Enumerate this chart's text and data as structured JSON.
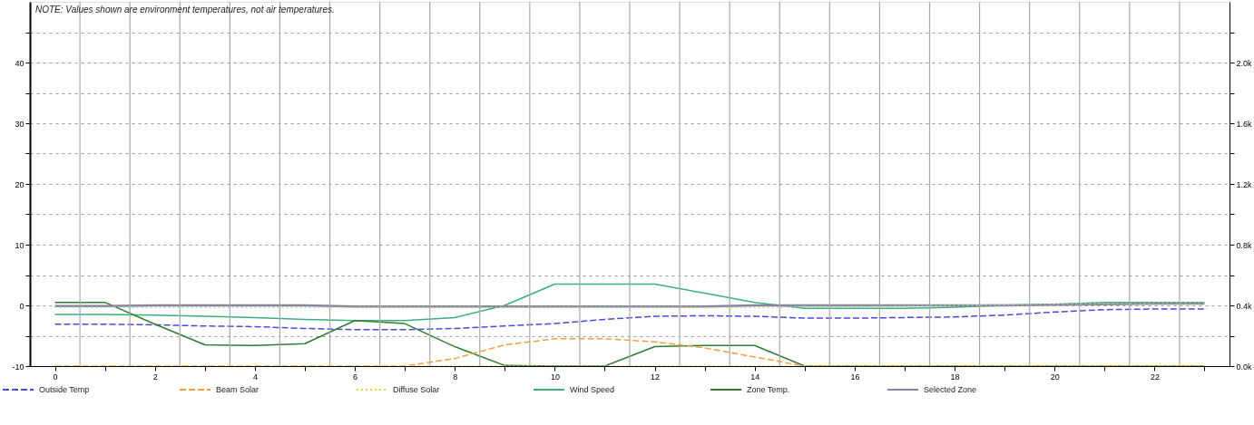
{
  "chart_data": {
    "type": "line",
    "annotations": [
      "NOTE: Values shown are environment temperatures, not air temperatures."
    ],
    "x": [
      0,
      1,
      2,
      3,
      4,
      5,
      6,
      7,
      8,
      9,
      10,
      11,
      12,
      13,
      14,
      15,
      16,
      17,
      18,
      19,
      20,
      21,
      22,
      23
    ],
    "xlim": [
      -0.5,
      23.5
    ],
    "xticks": [
      0,
      {
        "value": 1,
        "label": null
      },
      2,
      {
        "value": 3,
        "label": null
      },
      4,
      {
        "value": 5,
        "label": null
      },
      6,
      {
        "value": 7,
        "label": null
      },
      8,
      {
        "value": 9,
        "label": null
      },
      10,
      {
        "value": 11,
        "label": null
      },
      12,
      {
        "value": 13,
        "label": null
      },
      14,
      {
        "value": 15,
        "label": null
      },
      16,
      {
        "value": 17,
        "label": null
      },
      18,
      {
        "value": 19,
        "label": null
      },
      20,
      {
        "value": 21,
        "label": null
      },
      22,
      {
        "value": 23,
        "label": null
      }
    ],
    "ylim": [
      -10,
      50
    ],
    "yticks": [
      -10,
      {
        "value": -5,
        "label": null
      },
      0,
      {
        "value": 5,
        "label": null
      },
      10,
      {
        "value": 15,
        "label": null
      },
      20,
      {
        "value": 25,
        "label": null
      },
      30,
      {
        "value": 35,
        "label": null
      },
      40,
      {
        "value": 45,
        "label": null
      }
    ],
    "y2lim": [
      0,
      2400
    ],
    "y2ticks": [
      {
        "value": 0,
        "label": "0.0k"
      },
      {
        "value": 200,
        "label": null
      },
      {
        "value": 400,
        "label": "0.4k"
      },
      {
        "value": 600,
        "label": null
      },
      {
        "value": 800,
        "label": "0.8k"
      },
      {
        "value": 1000,
        "label": null
      },
      {
        "value": 1200,
        "label": "1.2k"
      },
      {
        "value": 1400,
        "label": null
      },
      {
        "value": 1600,
        "label": "1.6k"
      },
      {
        "value": 1800,
        "label": null
      },
      {
        "value": 2000,
        "label": "2.0k"
      },
      {
        "value": 2200,
        "label": null
      }
    ],
    "grid": "y",
    "legend": "bottom",
    "ref_lines": [
      {
        "axis": "x",
        "value": 0.5,
        "color": "#a8a8a8"
      },
      {
        "axis": "x",
        "value": 1.5,
        "color": "#a8a8a8"
      },
      {
        "axis": "x",
        "value": 2.5,
        "color": "#a8a8a8"
      },
      {
        "axis": "x",
        "value": 3.5,
        "color": "#a8a8a8"
      },
      {
        "axis": "x",
        "value": 4.5,
        "color": "#a8a8a8"
      },
      {
        "axis": "x",
        "value": 5.5,
        "color": "#a8a8a8"
      },
      {
        "axis": "x",
        "value": 6.5,
        "color": "#a8a8a8"
      },
      {
        "axis": "x",
        "value": 7.5,
        "color": "#a8a8a8"
      },
      {
        "axis": "x",
        "value": 8.5,
        "color": "#a8a8a8"
      },
      {
        "axis": "x",
        "value": 9.5,
        "color": "#a8a8a8"
      },
      {
        "axis": "x",
        "value": 10.5,
        "color": "#a8a8a8"
      },
      {
        "axis": "x",
        "value": 11.5,
        "color": "#a8a8a8"
      },
      {
        "axis": "x",
        "value": 12.5,
        "color": "#a8a8a8"
      },
      {
        "axis": "x",
        "value": 13.5,
        "color": "#a8a8a8"
      },
      {
        "axis": "x",
        "value": 14.5,
        "color": "#a8a8a8"
      },
      {
        "axis": "x",
        "value": 15.5,
        "color": "#a8a8a8"
      },
      {
        "axis": "x",
        "value": 16.5,
        "color": "#a8a8a8"
      },
      {
        "axis": "x",
        "value": 17.5,
        "color": "#a8a8a8"
      },
      {
        "axis": "x",
        "value": 18.5,
        "color": "#a8a8a8"
      },
      {
        "axis": "x",
        "value": 19.5,
        "color": "#a8a8a8"
      },
      {
        "axis": "x",
        "value": 20.5,
        "color": "#a8a8a8"
      },
      {
        "axis": "x",
        "value": 21.5,
        "color": "#a8a8a8"
      },
      {
        "axis": "x",
        "value": 22.5,
        "color": "#a8a8a8"
      }
    ],
    "series": [
      {
        "name": "Outside Temp",
        "color": "#4a4ad8",
        "line_style": "dashed",
        "values": [
          -3.1,
          -3.1,
          -3.2,
          -3.4,
          -3.5,
          -3.8,
          -4,
          -4,
          -3.8,
          -3.4,
          -3,
          -2.3,
          -1.8,
          -1.7,
          -1.8,
          -2.1,
          -2.1,
          -2,
          -1.9,
          -1.6,
          -1.1,
          -0.7,
          -0.6,
          -0.6
        ]
      },
      {
        "name": "Beam Solar",
        "color": "#f0a040",
        "line_style": "dashed",
        "axis": "y2",
        "values": [
          0,
          0,
          0,
          0,
          0,
          0,
          0,
          0,
          50,
          140,
          180,
          180,
          160,
          120,
          60,
          0,
          0,
          0,
          0,
          0,
          0,
          0,
          0,
          0
        ]
      },
      {
        "name": "Diffuse Solar",
        "color": "#e8d040",
        "line_style": "dotted",
        "axis": "y2",
        "values": [
          0,
          0,
          0,
          0,
          0,
          0,
          0,
          0,
          0,
          0,
          0,
          0,
          0,
          0,
          0,
          0,
          0,
          0,
          0,
          0,
          0,
          0,
          0,
          0
        ]
      },
      {
        "name": "Wind Speed",
        "color": "#3cb07a",
        "line_style": "solid",
        "values": [
          -1.5,
          -1.5,
          -1.6,
          -1.8,
          -2,
          -2.3,
          -2.5,
          -2.5,
          -2,
          0,
          3.5,
          3.5,
          3.5,
          2,
          0.5,
          -0.5,
          -0.5,
          -0.5,
          -0.3,
          0,
          0.2,
          0.5,
          0.5,
          0.5
        ]
      },
      {
        "name": "Zone Temp.",
        "color": "#2e7d32",
        "line_style": "solid",
        "values": [
          0.5,
          0.5,
          -3.1,
          -6.5,
          -6.6,
          -6.3,
          -2.5,
          -3,
          -6.8,
          -9.9,
          -10,
          -10,
          -6.8,
          -6.6,
          -6.6,
          -10,
          -10,
          -10,
          -10,
          -10,
          -10,
          -10,
          -10,
          -10
        ]
      },
      {
        "name": "Selected Zone",
        "color": "#9080a0",
        "line_style": "solid",
        "values": [
          -0.1,
          -0.1,
          0,
          0,
          0,
          0,
          -0.2,
          -0.2,
          -0.2,
          -0.2,
          -0.2,
          -0.2,
          -0.2,
          -0.2,
          0,
          0,
          0,
          0,
          0,
          0,
          0.1,
          0.2,
          0.3,
          0.3
        ]
      },
      {
        "color": "#90d890",
        "line_style": "dotted",
        "values": [
          -0.3,
          -0.3,
          -0.3,
          -0.3,
          -0.3,
          -0.3,
          -0.3,
          -0.3,
          -0.3,
          -0.3,
          -0.3,
          -0.3,
          -0.3,
          -0.3,
          -0.3,
          -0.2,
          -0.2,
          -0.1,
          0,
          0.1,
          0.2,
          0.3,
          0.4,
          0.4
        ]
      }
    ]
  }
}
